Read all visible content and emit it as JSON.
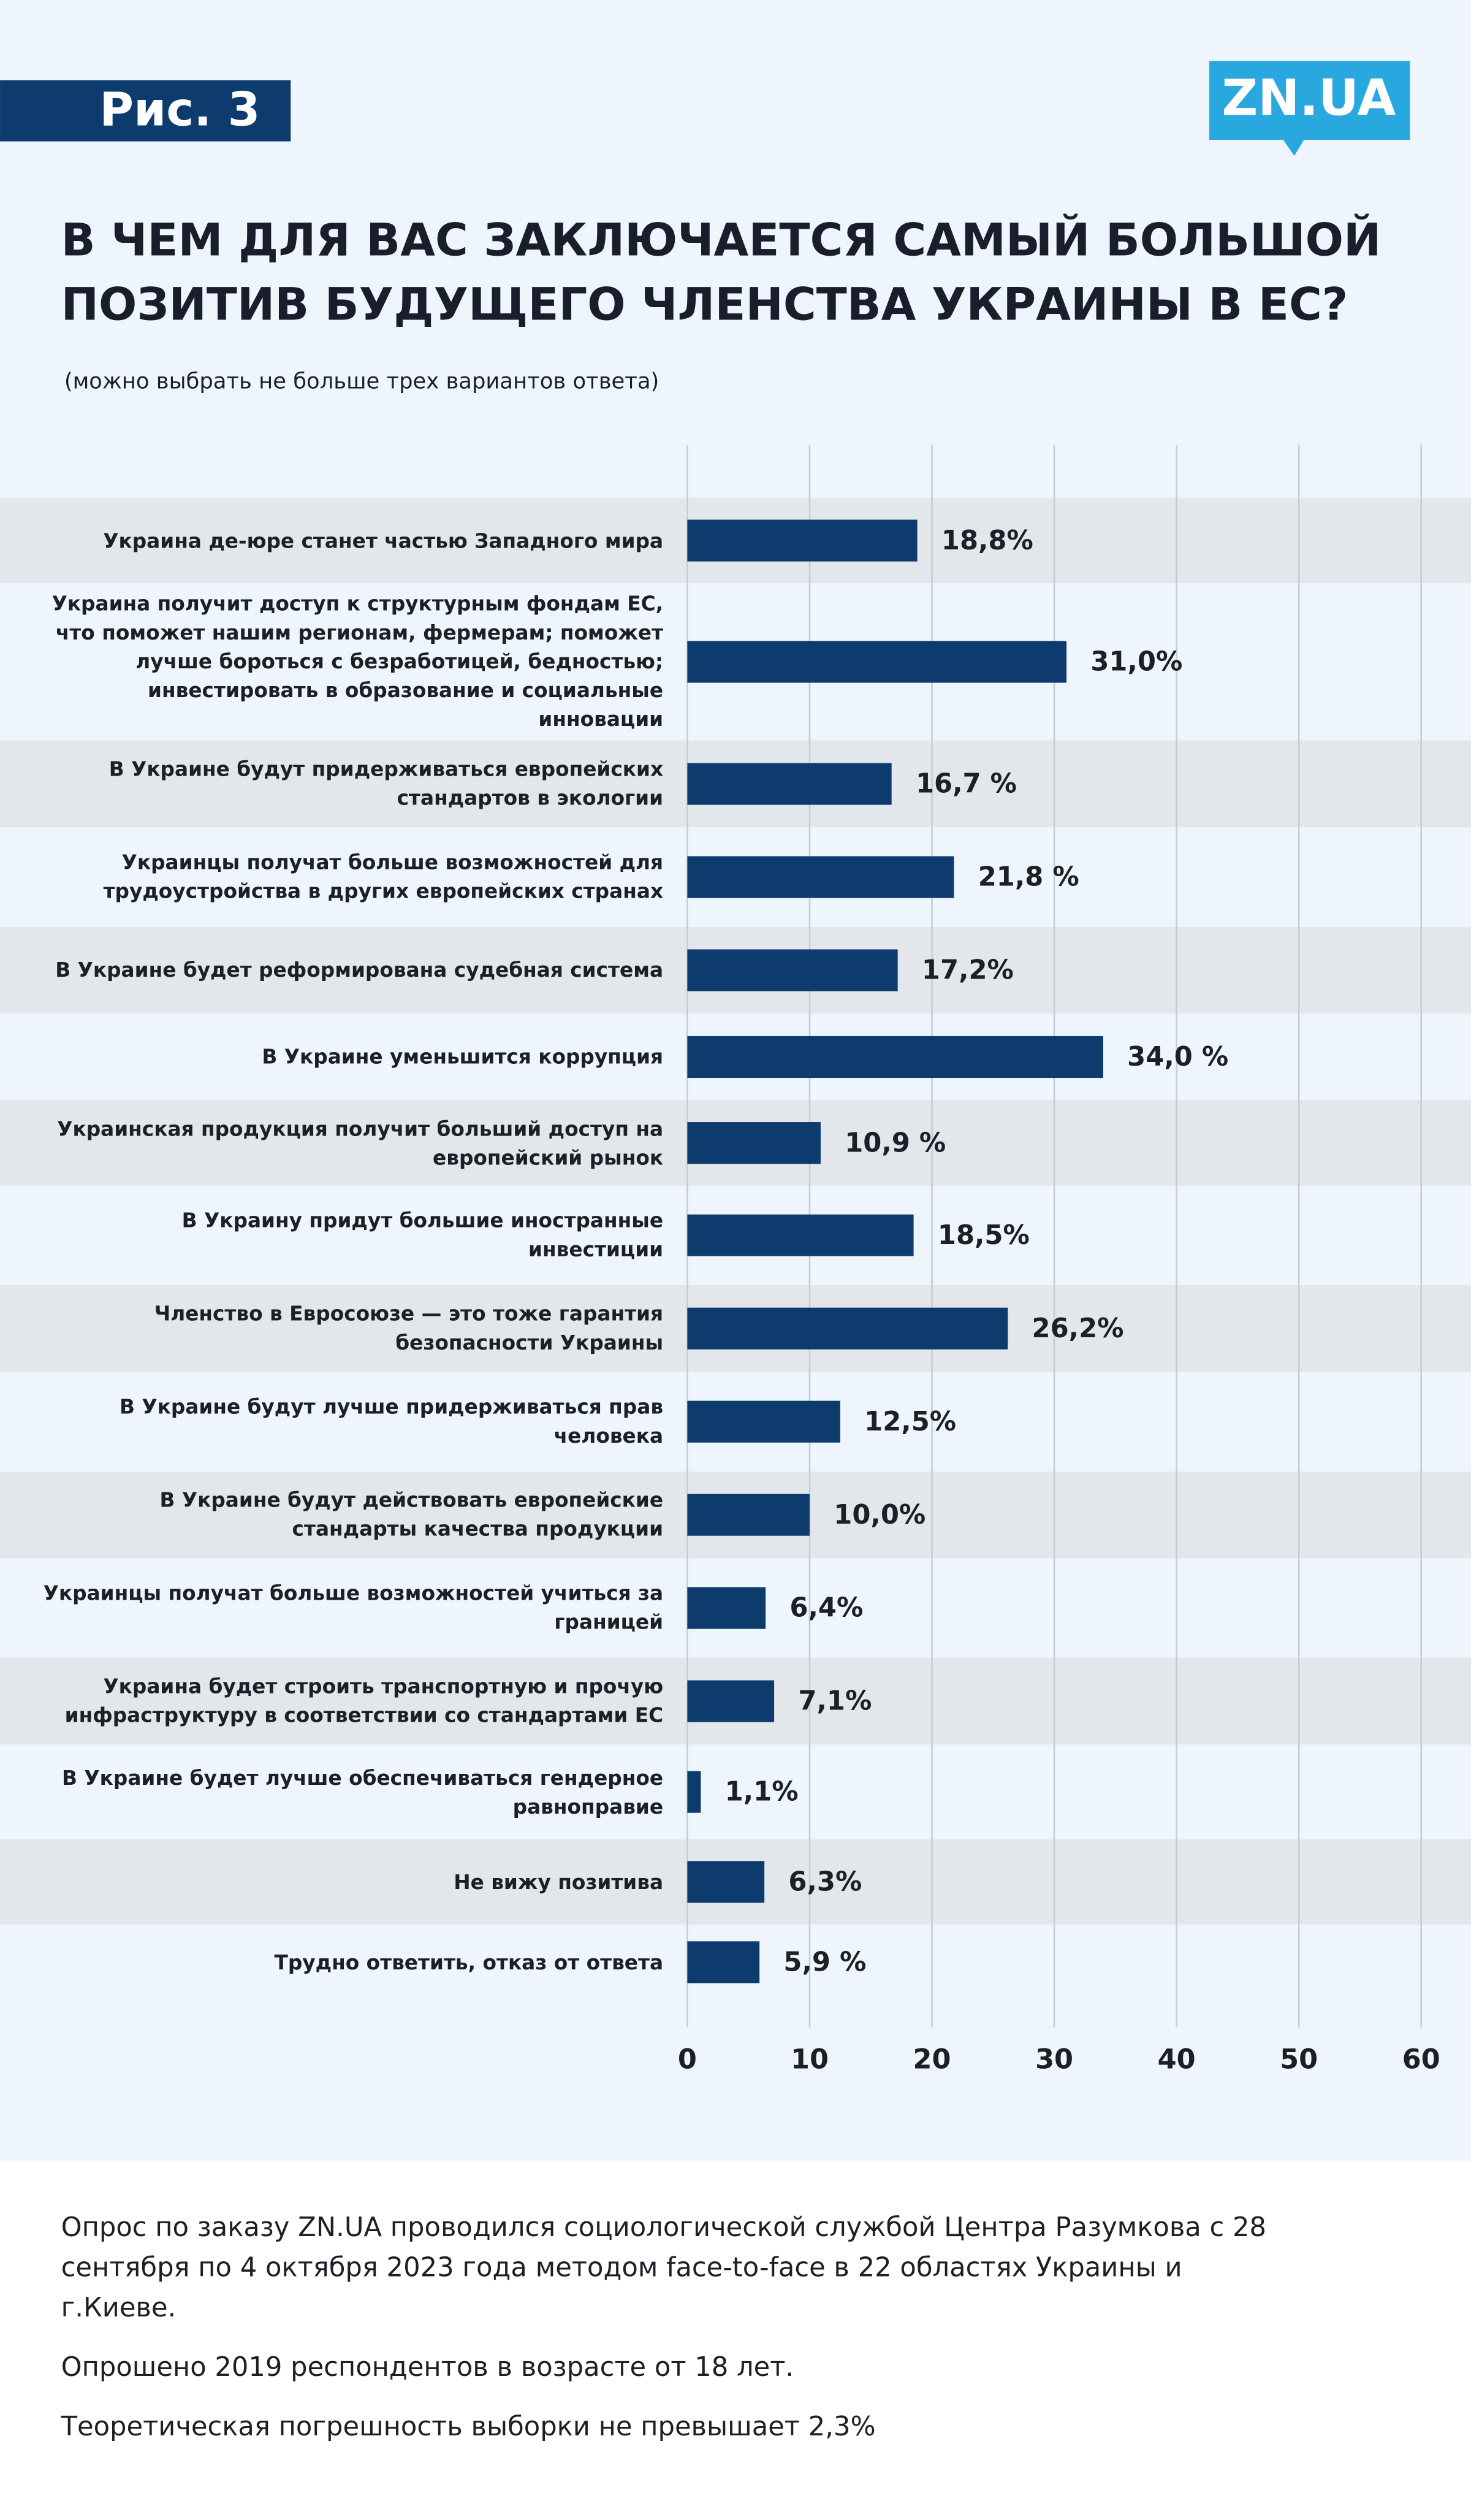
{
  "header": {
    "figure_label": "Рис. 3",
    "logo": "ZN.UA"
  },
  "chart_data": {
    "type": "bar",
    "orientation": "horizontal",
    "title": "В ЧЕМ ДЛЯ ВАС ЗАКЛЮЧАЕТСЯ САМЫЙ БОЛЬШОЙ ПОЗИТИВ БУДУЩЕГО ЧЛЕНСТВА УКРАИНЫ В ЕС?",
    "subtitle": "(можно выбрать не больше трех вариантов ответа)",
    "categories": [
      "Украина де-юре станет частью Западного мира",
      "Украина получит доступ к структурным фондам ЕС, что поможет нашим регионам, фермерам; поможет лучше бороться с безработицей, бедностью; инвестировать в образование и социальные инновации",
      "В Украине будут придерживаться европейских стандартов в экологии",
      "Украинцы получат больше возможностей для трудоустройства в других европейских странах",
      "В Украине будет реформирована судебная система",
      "В Украине уменьшится коррупция",
      "Украинская продукция получит больший доступ на европейский рынок",
      "В Украину придут большие иностранные инвестиции",
      "Членство в Евросоюзе — это тоже гарантия безопасности Украины",
      "В Украине будут лучше придерживаться прав человека",
      "В Украине будут действовать европейские стандарты качества продукции",
      "Украинцы получат больше возможностей учиться за границей",
      "Украина будет строить транспортную и прочую инфраструктуру в соответствии со стандартами ЕС",
      "В Украине будет лучше обеспечиваться гендерное равноправие",
      "Не вижу позитива",
      "Трудно ответить, отказ от ответа"
    ],
    "values": [
      18.8,
      31.0,
      16.7,
      21.8,
      17.2,
      34.0,
      10.9,
      18.5,
      26.2,
      12.5,
      10.0,
      6.4,
      7.1,
      1.1,
      6.3,
      5.9
    ],
    "value_labels": [
      "18,8%",
      "31,0%",
      "16,7 %",
      "21,8 %",
      "17,2%",
      "34,0 %",
      "10,9 %",
      "18,5%",
      "26,2%",
      "12,5%",
      "10,0%",
      "6,4%",
      "7,1%",
      "1,1%",
      "6,3%",
      "5,9 %"
    ],
    "color": "#0d3b6e",
    "xlim": [
      0,
      60
    ],
    "xticks": [
      0,
      10,
      20,
      30,
      40,
      50,
      60
    ],
    "grid": true
  },
  "footer": {
    "notes": [
      "Опрос по заказу ZN.UA проводился социологической службой Центра Разумкова с 28 сентября по 4 октября 2023 года методом face-to-face в 22 областях Украины и г.Киеве.",
      "Опрошено 2019 респондентов в возрасте от 18 лет.",
      "Теоретическая погрешность выборки не превышает 2,3%"
    ]
  }
}
